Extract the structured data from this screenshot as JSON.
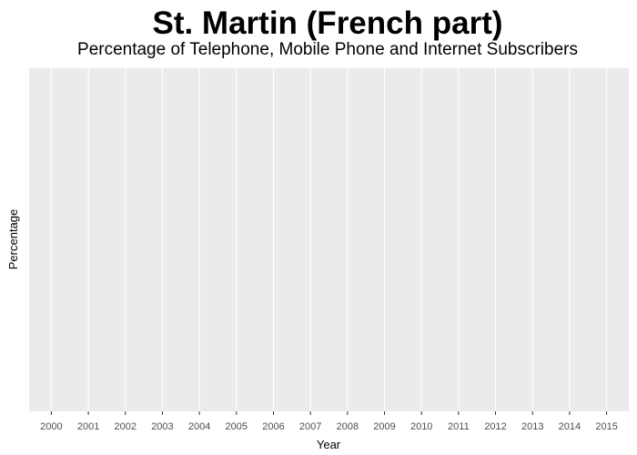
{
  "chart_data": {
    "type": "line",
    "title": "St. Martin (French part)",
    "subtitle": "Percentage of Telephone, Mobile Phone and Internet Subscribers",
    "xlabel": "Year",
    "ylabel": "Percentage",
    "x": [
      "2000",
      "2001",
      "2002",
      "2003",
      "2004",
      "2005",
      "2006",
      "2007",
      "2008",
      "2009",
      "2010",
      "2011",
      "2012",
      "2013",
      "2014",
      "2015"
    ],
    "series": [],
    "grid": true,
    "background": "#ebebeb",
    "gridline_color": "#ffffff",
    "tick_label_color": "#4d4d4d"
  }
}
